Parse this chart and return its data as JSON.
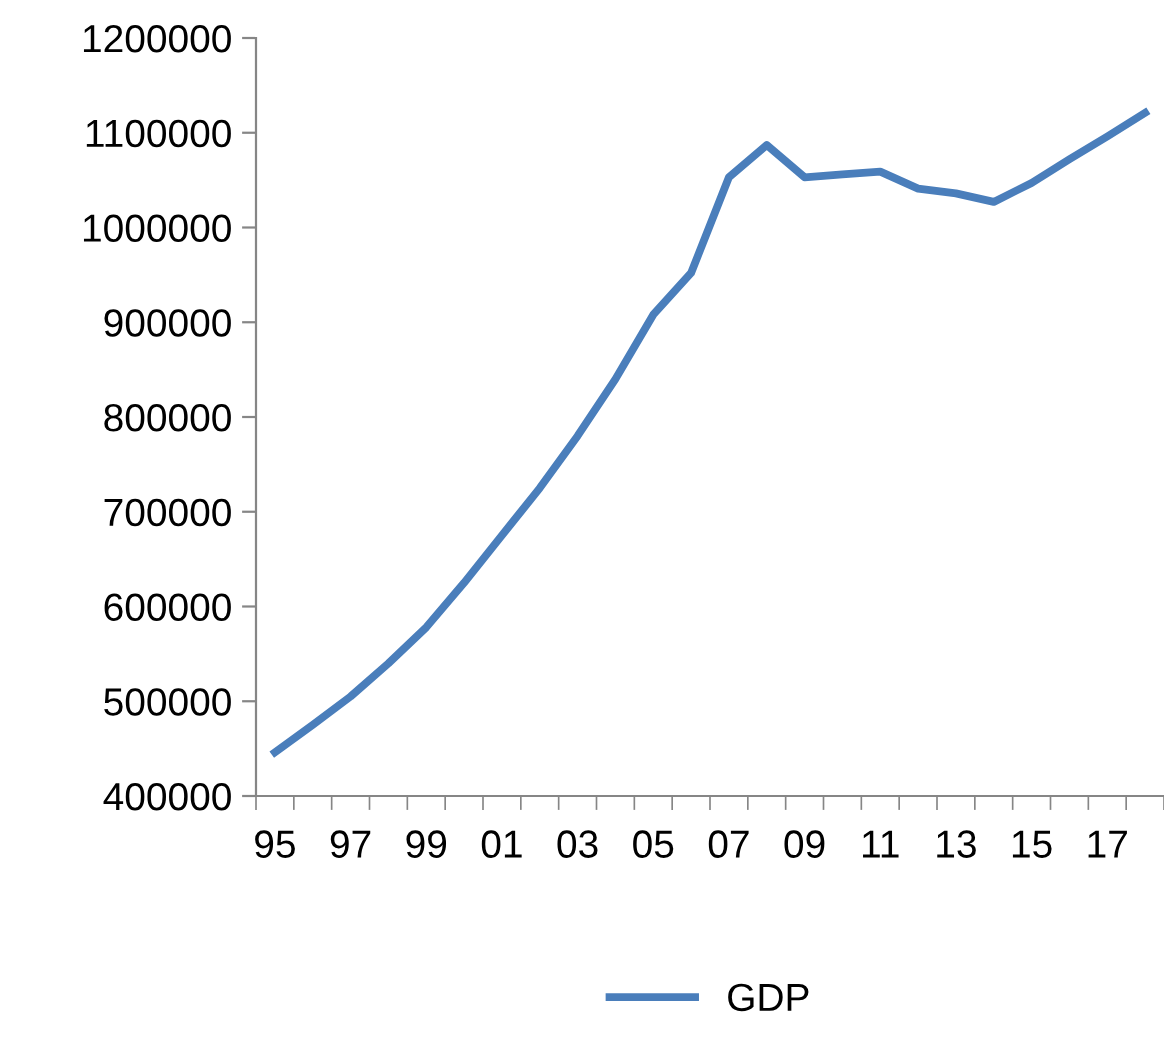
{
  "chart_data": {
    "type": "line",
    "categories": [
      "95",
      null,
      "97",
      null,
      "99",
      null,
      "01",
      null,
      "03",
      null,
      "05",
      null,
      "07",
      null,
      "09",
      null,
      "11",
      null,
      "13",
      null,
      "15",
      null,
      "17",
      null
    ],
    "series": [
      {
        "name": "GDP",
        "color": "#4a7ebb",
        "values": [
          446000,
          475000,
          505000,
          540000,
          578000,
          625000,
          675000,
          725000,
          780000,
          840000,
          908000,
          952000,
          1053000,
          1087000,
          1053000,
          1056000,
          1059000,
          1041000,
          1036000,
          1027000,
          1047000,
          1072000,
          1096000,
          1121000
        ]
      }
    ],
    "ylim": [
      400000,
      1200000
    ],
    "yticks": [
      400000,
      500000,
      600000,
      700000,
      800000,
      900000,
      1000000,
      1100000,
      1200000
    ],
    "grid": false,
    "legend": "bottom",
    "marker": "none",
    "line_style": "solid"
  }
}
